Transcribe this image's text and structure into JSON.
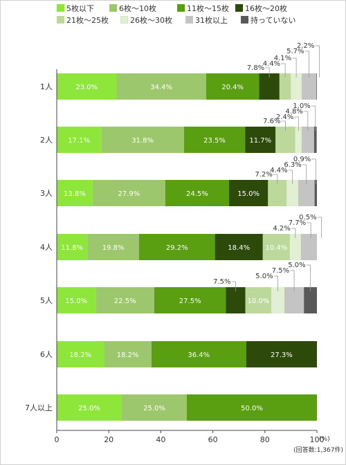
{
  "chart_data": {
    "type": "bar",
    "orientation": "horizontal",
    "stacked": true,
    "xlim": [
      0,
      100
    ],
    "x_ticks": [
      "0",
      "20",
      "40",
      "60",
      "80",
      "100"
    ],
    "x_unit": "(%)",
    "note": "(回答数:1,367件)",
    "grid": false,
    "legend_position": "top",
    "categories": [
      "1人",
      "2人",
      "3人",
      "4人",
      "5人",
      "6人",
      "7人以上"
    ],
    "series": [
      {
        "name": "5枚以下",
        "color": "#8ee63b",
        "values": [
          23.0,
          17.1,
          13.8,
          11.8,
          15.0,
          18.2,
          25.0
        ]
      },
      {
        "name": "6枚～10枚",
        "color": "#9dc76c",
        "values": [
          34.4,
          31.8,
          27.9,
          19.8,
          22.5,
          18.2,
          25.0
        ]
      },
      {
        "name": "11枚～15枚",
        "color": "#5a9e12",
        "values": [
          20.4,
          23.5,
          24.5,
          29.2,
          27.5,
          36.4,
          50.0
        ]
      },
      {
        "name": "16枚～20枚",
        "color": "#2e4a0b",
        "values": [
          7.8,
          11.7,
          15.0,
          18.4,
          7.5,
          27.3,
          0
        ]
      },
      {
        "name": "21枚～25枚",
        "color": "#bcd99b",
        "values": [
          4.4,
          7.6,
          7.2,
          10.4,
          10.0,
          0,
          0
        ]
      },
      {
        "name": "26枚～30枚",
        "color": "#e3efd5",
        "values": [
          4.1,
          2.4,
          4.4,
          4.2,
          5.0,
          0,
          0
        ]
      },
      {
        "name": "31枚以上",
        "color": "#c4c4c4",
        "values": [
          5.7,
          4.8,
          6.3,
          7.7,
          7.5,
          0,
          0
        ]
      },
      {
        "name": "持っていない",
        "color": "#595959",
        "values": [
          2.2,
          1.0,
          0.9,
          0.5,
          5.0,
          0,
          0
        ]
      }
    ],
    "labels": [
      [
        "23.0%",
        "34.4%",
        "20.4%",
        "",
        "",
        "",
        "",
        ""
      ],
      [
        "17.1%",
        "31.8%",
        "23.5%",
        "11.7%",
        "",
        "",
        "",
        ""
      ],
      [
        "13.8%",
        "27.9%",
        "24.5%",
        "15.0%",
        "",
        "",
        "",
        ""
      ],
      [
        "11.8%",
        "19.8%",
        "29.2%",
        "18.4%",
        "10.4%",
        "",
        "",
        ""
      ],
      [
        "15.0%",
        "22.5%",
        "27.5%",
        "",
        "10.0%",
        "",
        "",
        ""
      ],
      [
        "18.2%",
        "18.2%",
        "36.4%",
        "27.3%",
        "",
        "",
        "",
        ""
      ],
      [
        "25.0%",
        "25.0%",
        "50.0%",
        "",
        "",
        "",
        "",
        ""
      ]
    ],
    "callouts": [
      [
        {
          "series": 3,
          "text": "7.8%"
        },
        {
          "series": 4,
          "text": "4.4%"
        },
        {
          "series": 5,
          "text": "4.1%"
        },
        {
          "series": 6,
          "text": "5.7%"
        },
        {
          "series": 7,
          "text": "2.2%"
        }
      ],
      [
        {
          "series": 4,
          "text": "7.6%"
        },
        {
          "series": 5,
          "text": "2.4%"
        },
        {
          "series": 6,
          "text": "4.8%"
        },
        {
          "series": 7,
          "text": "1.0%"
        }
      ],
      [
        {
          "series": 4,
          "text": "7.2%"
        },
        {
          "series": 5,
          "text": "4.4%"
        },
        {
          "series": 6,
          "text": "6.3%"
        },
        {
          "series": 7,
          "text": "0.9%"
        }
      ],
      [
        {
          "series": 5,
          "text": "4.2%"
        },
        {
          "series": 6,
          "text": "7.7%"
        },
        {
          "series": 7,
          "text": "0.5%"
        }
      ],
      [
        {
          "series": 3,
          "text": "7.5%"
        },
        {
          "series": 5,
          "text": "5.0%"
        },
        {
          "series": 6,
          "text": "7.5%"
        },
        {
          "series": 7,
          "text": "5.0%"
        }
      ],
      [],
      []
    ]
  }
}
